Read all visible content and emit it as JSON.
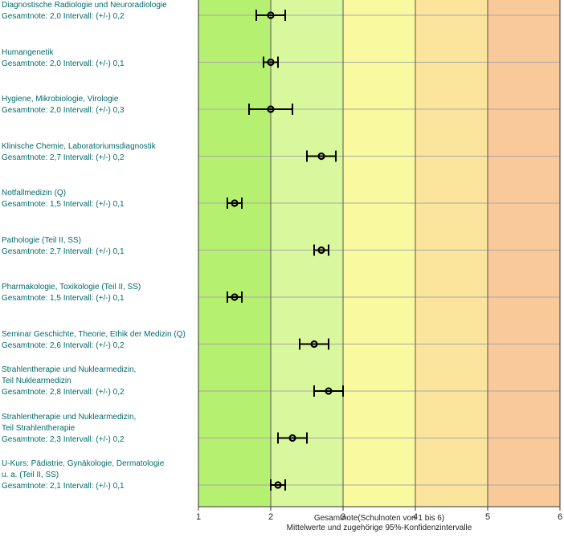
{
  "chart_data": {
    "type": "errorbar",
    "xlabel": "Gesamtnote(Schulnoten von 1 bis 6)",
    "subtitle": "Mittelwerte und zugehörige 95%-Konfidenzintervalle",
    "xlim": [
      1,
      6
    ],
    "xticks": [
      "1",
      "2",
      "3",
      "4",
      "5",
      "6"
    ],
    "zone_colors": [
      "#b6f070",
      "#d9f79c",
      "#f9f9a0",
      "#fbe49c",
      "#f9c99a"
    ],
    "grid": true,
    "items": [
      {
        "lines": [
          "Diagnostische Radiologie und Neuroradiologie"
        ],
        "summary": "Gesamtnote: 2,0  Intervall: (+/-) 0,2",
        "mean": 2.0,
        "ci": 0.2
      },
      {
        "lines": [
          "Humangenetik"
        ],
        "summary": "Gesamtnote: 2,0  Intervall: (+/-) 0,1",
        "mean": 2.0,
        "ci": 0.1
      },
      {
        "lines": [
          "Hygiene, Mikrobiologie, Virologie"
        ],
        "summary": "Gesamtnote: 2,0  Intervall: (+/-) 0,3",
        "mean": 2.0,
        "ci": 0.3
      },
      {
        "lines": [
          "Klinische Chemie, Laboratoriumsdiagnostik"
        ],
        "summary": "Gesamtnote: 2,7  Intervall: (+/-) 0,2",
        "mean": 2.7,
        "ci": 0.2
      },
      {
        "lines": [
          "Notfallmedizin (Q)"
        ],
        "summary": "Gesamtnote: 1,5  Intervall: (+/-) 0,1",
        "mean": 1.5,
        "ci": 0.1
      },
      {
        "lines": [
          "Pathologie (Teil II, SS)"
        ],
        "summary": "Gesamtnote: 2,7  Intervall: (+/-) 0,1",
        "mean": 2.7,
        "ci": 0.1
      },
      {
        "lines": [
          "Pharmakologie, Toxikologie (Teil II, SS)"
        ],
        "summary": "Gesamtnote: 1,5  Intervall: (+/-) 0,1",
        "mean": 1.5,
        "ci": 0.1
      },
      {
        "lines": [
          "Seminar Geschichte, Theorie, Ethik der Medizin (Q)"
        ],
        "summary": "Gesamtnote: 2,6  Intervall: (+/-) 0,2",
        "mean": 2.6,
        "ci": 0.2
      },
      {
        "lines": [
          "Strahlentherapie und Nuklearmedizin,",
          "Teil Nuklearmedizin"
        ],
        "summary": "Gesamtnote: 2,8  Intervall: (+/-) 0,2",
        "mean": 2.8,
        "ci": 0.2
      },
      {
        "lines": [
          "Strahlentherapie und Nuklearmedizin,",
          "Teil Strahlentherapie"
        ],
        "summary": "Gesamtnote: 2,3  Intervall: (+/-) 0,2",
        "mean": 2.3,
        "ci": 0.2
      },
      {
        "lines": [
          "U-Kurs: Pädiatrie, Gynäkologie, Dermatologie",
          "u. a.  (Teil II, SS)"
        ],
        "summary": "Gesamtnote: 2,1  Intervall: (+/-) 0,1",
        "mean": 2.1,
        "ci": 0.1
      }
    ]
  }
}
